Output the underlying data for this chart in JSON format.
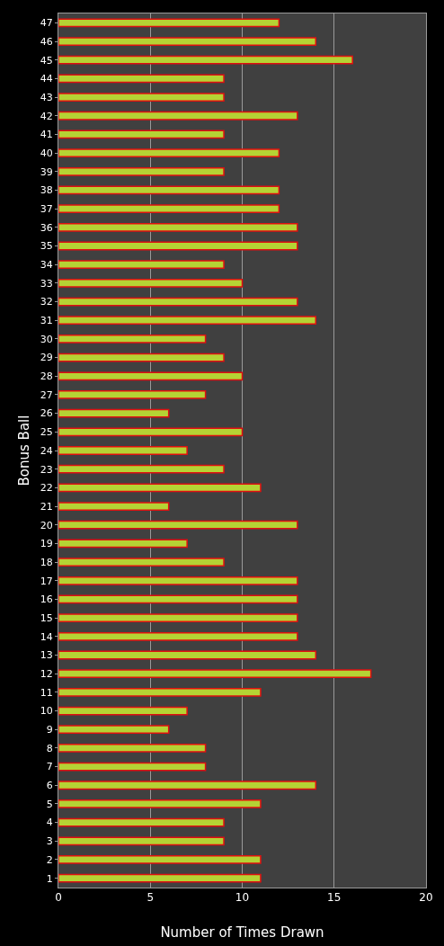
{
  "chart_data": {
    "type": "bar",
    "orientation": "horizontal",
    "xlabel": "Number of Times Drawn",
    "ylabel": "Bonus Ball",
    "categories": [
      "47",
      "46",
      "45",
      "44",
      "43",
      "42",
      "41",
      "40",
      "39",
      "38",
      "37",
      "36",
      "35",
      "34",
      "33",
      "32",
      "31",
      "30",
      "29",
      "28",
      "27",
      "26",
      "25",
      "24",
      "23",
      "22",
      "21",
      "20",
      "19",
      "18",
      "17",
      "16",
      "15",
      "14",
      "13",
      "12",
      "11",
      "10",
      "9",
      "8",
      "7",
      "6",
      "5",
      "4",
      "3",
      "2",
      "1"
    ],
    "values": [
      12,
      14,
      16,
      9,
      9,
      13,
      9,
      12,
      9,
      12,
      12,
      13,
      13,
      9,
      10,
      13,
      14,
      8,
      9,
      10,
      8,
      6,
      10,
      7,
      9,
      11,
      6,
      13,
      7,
      9,
      13,
      13,
      13,
      13,
      14,
      17,
      11,
      7,
      6,
      8,
      8,
      14,
      11,
      9,
      9,
      11,
      11
    ],
    "color": "#b5d334",
    "xlim": [
      0,
      20
    ],
    "xticks": [
      0,
      5,
      10,
      15,
      20
    ],
    "grid": "x"
  }
}
